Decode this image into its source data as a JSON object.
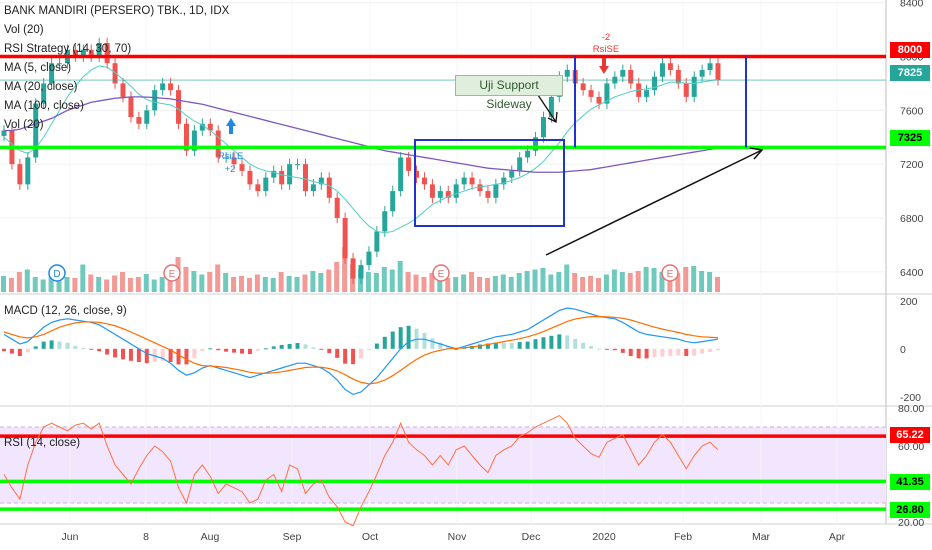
{
  "header": {
    "title": "BANK MANDIRI (PERSERO) TBK., 1D, IDX",
    "legend": [
      "Vol (20)",
      "RSI Strategy (14, 30, 70)",
      "MA (5, close)",
      "MA (20, close)",
      "MA (100, close)",
      "Vol (20)"
    ]
  },
  "annotations": {
    "callout": "Uji Support Sideway",
    "rsi_le_label": "RsiLE",
    "rsi_le_value": "+2",
    "rsi_se_label": "RsiSE",
    "rsi_se_value": "-2",
    "event_markers": [
      "D",
      "E",
      "E",
      "E"
    ]
  },
  "price_badges": [
    {
      "label": "8000",
      "color": "#ff0000",
      "value": 8000
    },
    {
      "label": "7825",
      "color": "#26a69a",
      "value": 7825
    },
    {
      "label": "7325",
      "color": "#00ff00",
      "value": 7325
    }
  ],
  "rsi_badges": [
    {
      "label": "65.22",
      "color": "#ff0000",
      "value": 65.22
    },
    {
      "label": "41.35",
      "color": "#00ff00",
      "value": 41.35
    },
    {
      "label": "26.80",
      "color": "#00ff00",
      "value": 26.8
    }
  ],
  "macd_title": "MACD (12, 26, close, 9)",
  "rsi_title": "RSI (14, close)",
  "chart_data": {
    "type": "candlestick",
    "x_tick_labels": [
      "Jun",
      "8",
      "Aug",
      "Sep",
      "Oct",
      "Nov",
      "Dec",
      "2020",
      "Feb",
      "Mar",
      "Apr"
    ],
    "price_axis": {
      "ticks": [
        6400,
        6800,
        7200,
        7600,
        8000,
        8400
      ],
      "range": [
        6250,
        8420
      ]
    },
    "macd_axis": {
      "ticks": [
        200,
        0,
        -200
      ],
      "range": [
        -230,
        220
      ]
    },
    "rsi_axis": {
      "ticks": [
        80,
        60,
        40,
        20
      ],
      "tick_labels": [
        "80.00",
        "60.00",
        "40.00",
        "20.00"
      ],
      "range": [
        20,
        80
      ]
    },
    "horizontal_levels": [
      {
        "pane": "price",
        "value": 8000,
        "color": "#ff0000"
      },
      {
        "pane": "price",
        "value": 7325,
        "color": "#00ff00"
      },
      {
        "pane": "rsi",
        "value": 65.22,
        "color": "#ff0000"
      },
      {
        "pane": "rsi",
        "value": 41.35,
        "color": "#00ff00"
      },
      {
        "pane": "rsi",
        "value": 26.8,
        "color": "#00ff00"
      }
    ],
    "close_series": [
      7450,
      7200,
      7050,
      7250,
      7650,
      7800,
      7950,
      7950,
      8050,
      8000,
      8050,
      8000,
      8100,
      7950,
      7800,
      7700,
      7550,
      7500,
      7600,
      7750,
      7800,
      7750,
      7500,
      7300,
      7450,
      7500,
      7450,
      7250,
      7250,
      7200,
      7150,
      7050,
      7000,
      7100,
      7150,
      7050,
      7200,
      7200,
      7000,
      7050,
      7100,
      6950,
      6800,
      6500,
      6350,
      6450,
      6550,
      6700,
      6850,
      7000,
      7250,
      7150,
      7100,
      7050,
      6950,
      7000,
      6950,
      7050,
      7100,
      7050,
      7000,
      6950,
      7050,
      7100,
      7150,
      7250,
      7300,
      7400,
      7550,
      7700,
      7850,
      7900,
      7800,
      7750,
      7700,
      7650,
      7800,
      7850,
      7900,
      7800,
      7700,
      7750,
      7850,
      7950,
      7900,
      7800,
      7700,
      7850,
      7900,
      7950,
      7825
    ],
    "ma20_series": [
      7400,
      7350,
      7300,
      7280,
      7320,
      7400,
      7500,
      7600,
      7700,
      7780,
      7850,
      7900,
      7930,
      7920,
      7880,
      7830,
      7780,
      7720,
      7680,
      7660,
      7650,
      7640,
      7610,
      7560,
      7520,
      7490,
      7450,
      7400,
      7350,
      7300,
      7250,
      7200,
      7170,
      7150,
      7140,
      7120,
      7110,
      7100,
      7090,
      7070,
      7060,
      7040,
      7000,
      6940,
      6870,
      6800,
      6740,
      6700,
      6690,
      6700,
      6730,
      6760,
      6800,
      6850,
      6900,
      6930,
      6960,
      6980,
      7000,
      7020,
      7030,
      7040,
      7050,
      7060,
      7080,
      7100,
      7130,
      7170,
      7220,
      7290,
      7360,
      7440,
      7510,
      7560,
      7610,
      7640,
      7670,
      7700,
      7720,
      7740,
      7750,
      7760,
      7770,
      7790,
      7810,
      7810,
      7800,
      7800,
      7810,
      7820,
      7830
    ],
    "ma100_series": [
      7450,
      7450,
      7460,
      7480,
      7500,
      7520,
      7540,
      7570,
      7600,
      7620,
      7640,
      7660,
      7670,
      7680,
      7690,
      7695,
      7700,
      7700,
      7698,
      7695,
      7690,
      7685,
      7675,
      7665,
      7655,
      7645,
      7630,
      7615,
      7600,
      7585,
      7570,
      7555,
      7540,
      7525,
      7510,
      7495,
      7480,
      7465,
      7450,
      7435,
      7420,
      7405,
      7390,
      7375,
      7360,
      7345,
      7330,
      7315,
      7300,
      7290,
      7280,
      7270,
      7260,
      7250,
      7240,
      7230,
      7220,
      7210,
      7200,
      7190,
      7180,
      7170,
      7165,
      7160,
      7155,
      7150,
      7145,
      7140,
      7140,
      7140,
      7140,
      7145,
      7150,
      7155,
      7160,
      7170,
      7180,
      7190,
      7200,
      7210,
      7220,
      7230,
      7240,
      7250,
      7260,
      7270,
      7280,
      7290,
      7300,
      7310,
      7320
    ],
    "volume_series": [
      32,
      28,
      40,
      45,
      30,
      25,
      38,
      42,
      30,
      28,
      55,
      35,
      30,
      25,
      33,
      40,
      28,
      30,
      36,
      25,
      30,
      45,
      70,
      50,
      42,
      35,
      40,
      55,
      38,
      30,
      32,
      28,
      35,
      30,
      28,
      40,
      32,
      30,
      35,
      42,
      38,
      45,
      60,
      90,
      55,
      45,
      40,
      38,
      50,
      45,
      62,
      40,
      35,
      30,
      38,
      32,
      28,
      30,
      35,
      40,
      30,
      28,
      32,
      35,
      30,
      38,
      42,
      45,
      48,
      35,
      40,
      55,
      38,
      30,
      32,
      28,
      35,
      45,
      40,
      38,
      42,
      50,
      48,
      40,
      45,
      38,
      50,
      52,
      42,
      40,
      30
    ],
    "macd_series": [
      60,
      40,
      20,
      30,
      60,
      90,
      110,
      120,
      125,
      120,
      115,
      110,
      100,
      80,
      60,
      40,
      20,
      0,
      -20,
      -30,
      -40,
      -60,
      -90,
      -110,
      -100,
      -80,
      -70,
      -80,
      -90,
      -100,
      -110,
      -120,
      -110,
      -100,
      -90,
      -80,
      -70,
      -60,
      -60,
      -70,
      -80,
      -100,
      -130,
      -170,
      -190,
      -180,
      -150,
      -120,
      -80,
      -40,
      0,
      30,
      40,
      40,
      30,
      20,
      10,
      0,
      10,
      20,
      30,
      40,
      50,
      55,
      60,
      70,
      80,
      100,
      120,
      140,
      160,
      170,
      165,
      155,
      145,
      135,
      130,
      125,
      110,
      90,
      70,
      60,
      55,
      50,
      45,
      40,
      30,
      25,
      30,
      35,
      40
    ],
    "signal_series": [
      70,
      60,
      50,
      45,
      50,
      60,
      75,
      90,
      100,
      108,
      112,
      112,
      110,
      104,
      96,
      84,
      70,
      55,
      40,
      25,
      10,
      -5,
      -25,
      -45,
      -60,
      -70,
      -72,
      -74,
      -78,
      -84,
      -90,
      -98,
      -102,
      -102,
      -100,
      -96,
      -90,
      -84,
      -78,
      -76,
      -77,
      -82,
      -92,
      -108,
      -126,
      -140,
      -146,
      -142,
      -130,
      -112,
      -90,
      -66,
      -44,
      -26,
      -14,
      -6,
      0,
      2,
      4,
      8,
      12,
      18,
      24,
      30,
      36,
      42,
      50,
      60,
      72,
      86,
      100,
      114,
      124,
      130,
      134,
      134,
      133,
      131,
      127,
      120,
      110,
      100,
      90,
      82,
      75,
      68,
      60,
      54,
      50,
      48,
      46
    ],
    "rsi_series": [
      45,
      38,
      32,
      50,
      62,
      70,
      72,
      70,
      68,
      71,
      72,
      69,
      72,
      60,
      50,
      45,
      40,
      48,
      55,
      60,
      57,
      52,
      38,
      30,
      45,
      50,
      44,
      35,
      40,
      38,
      36,
      30,
      32,
      42,
      45,
      36,
      50,
      48,
      35,
      40,
      42,
      33,
      28,
      20,
      18,
      28,
      36,
      45,
      55,
      62,
      72,
      62,
      58,
      55,
      50,
      55,
      50,
      58,
      60,
      55,
      50,
      46,
      55,
      58,
      60,
      65,
      67,
      70,
      72,
      74,
      76,
      72,
      64,
      60,
      56,
      54,
      62,
      64,
      66,
      58,
      50,
      55,
      62,
      66,
      62,
      55,
      48,
      55,
      60,
      62,
      58
    ]
  }
}
